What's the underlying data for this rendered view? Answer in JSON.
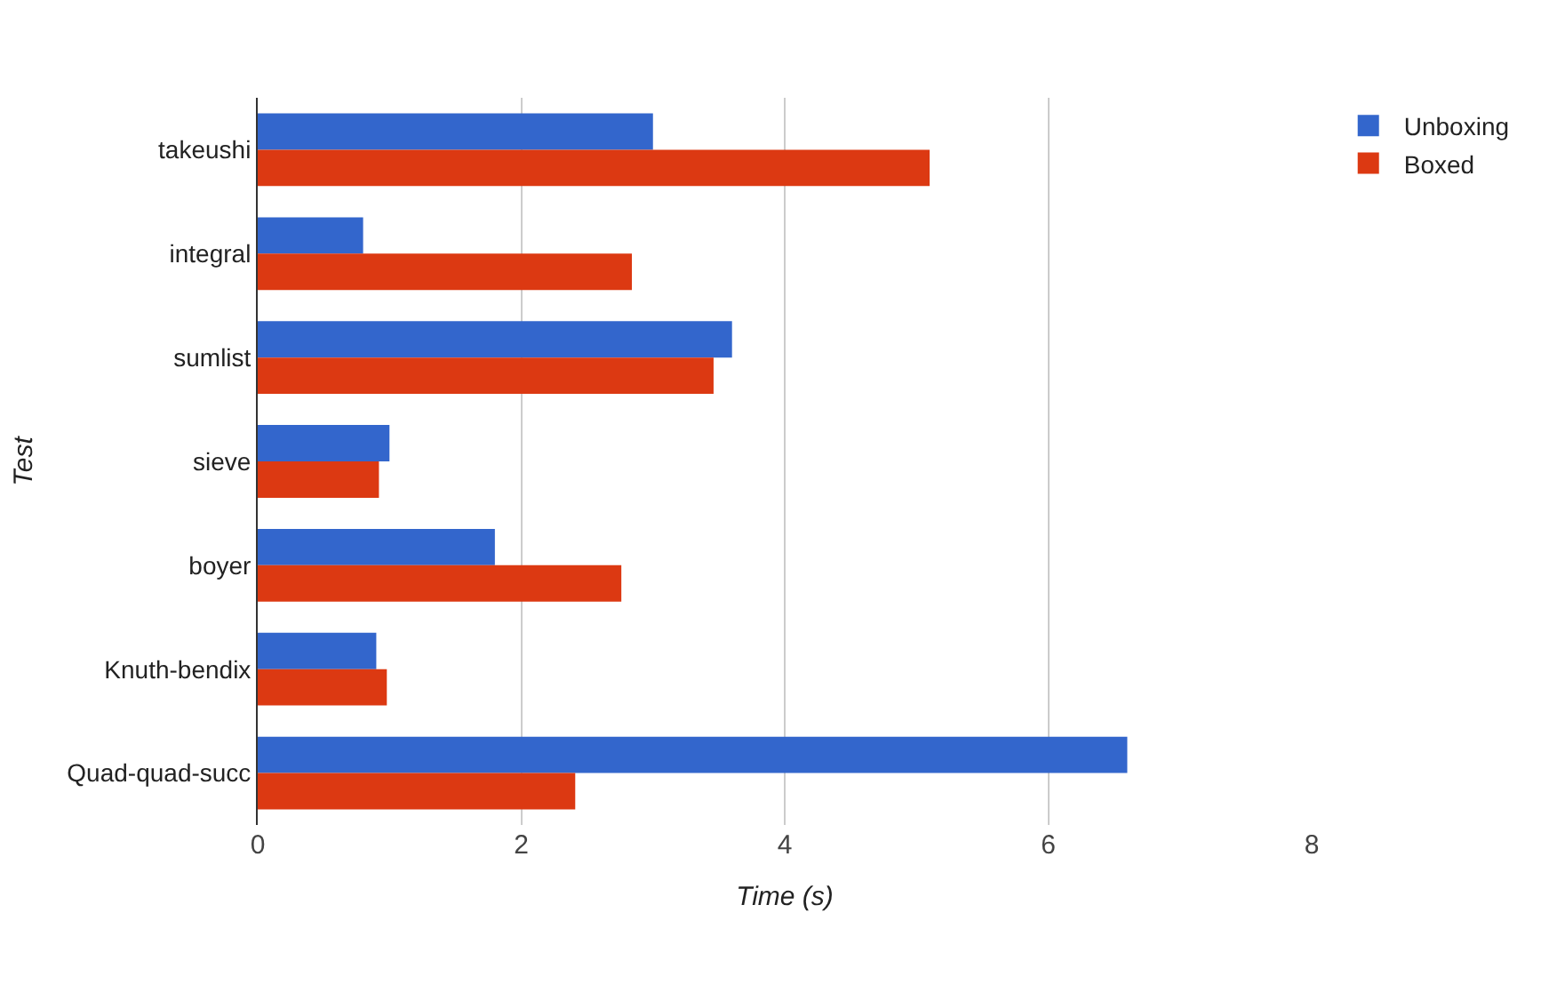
{
  "chart_data": {
    "type": "bar",
    "orientation": "horizontal",
    "xlabel": "Time (s)",
    "ylabel": "Test",
    "categories": [
      "takeushi",
      "integral",
      "sumlist",
      "sieve",
      "boyer",
      "Knuth-bendix",
      "Quad-quad-succ"
    ],
    "series": [
      {
        "name": "Unboxing",
        "color": "#3366cc",
        "values": [
          3.0,
          0.8,
          3.6,
          1.0,
          1.8,
          0.9,
          6.6
        ]
      },
      {
        "name": "Boxed",
        "color": "#dc3912",
        "values": [
          5.1,
          2.84,
          3.46,
          0.92,
          2.76,
          0.98,
          2.41
        ]
      }
    ],
    "xlim": [
      0,
      8
    ],
    "xticks": [
      0,
      2,
      4,
      6,
      8
    ],
    "grid": "x",
    "legend": "top right"
  }
}
